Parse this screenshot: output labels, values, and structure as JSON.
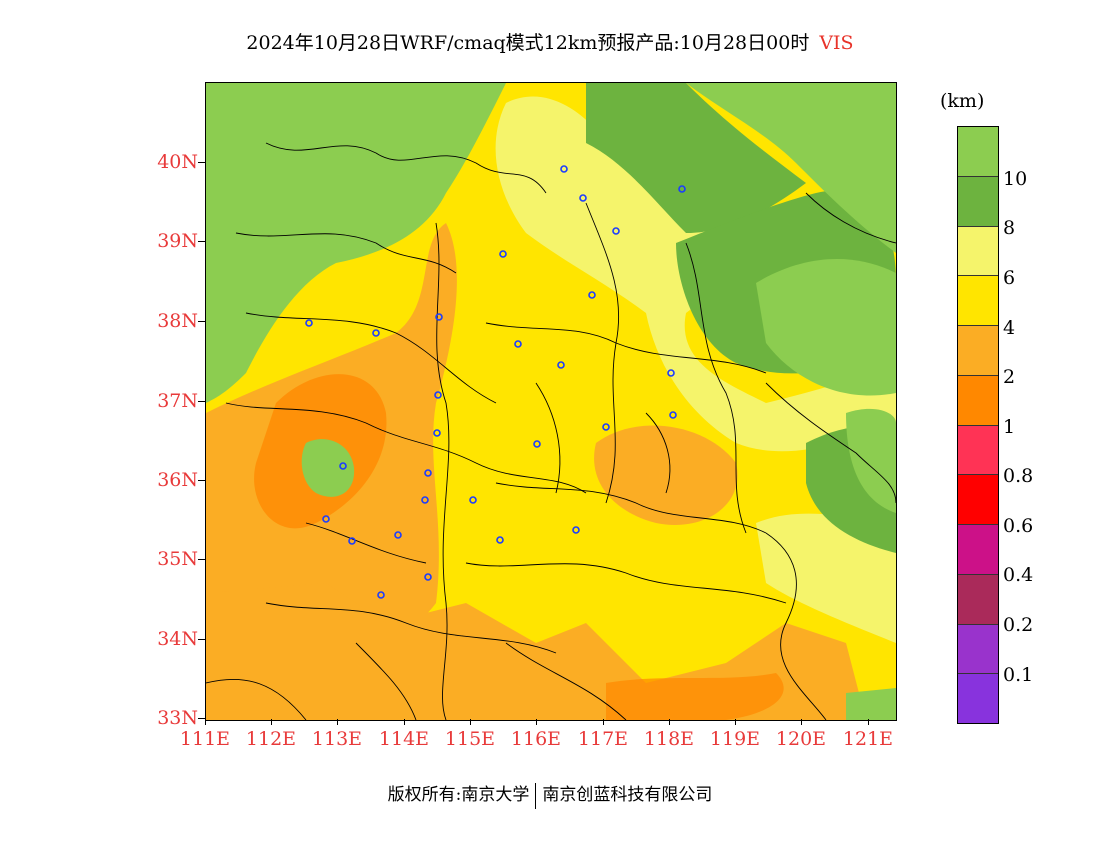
{
  "title": {
    "main": "2024年10月28日WRF/cmaq模式12km预报产品:10月28日00时",
    "variable": "VIS"
  },
  "map": {
    "lat_labels": [
      "40N",
      "39N",
      "38N",
      "37N",
      "36N",
      "35N",
      "34N",
      "33N"
    ],
    "lon_labels": [
      "111E",
      "112E",
      "113E",
      "114E",
      "115E",
      "116E",
      "117E",
      "118E",
      "119E",
      "120E",
      "121E"
    ],
    "stations_count_shown": 27
  },
  "legend": {
    "unit": "(km)",
    "labels": [
      "10",
      "8",
      "6",
      "4",
      "2",
      "1",
      "0.8",
      "0.6",
      "0.4",
      "0.2",
      "0.1"
    ],
    "colors": [
      "#8ccd50",
      "#6db33f",
      "#f5f46b",
      "#ffe500",
      "#fbad24",
      "#ff8800",
      "#ff3355",
      "#ff0000",
      "#cc1188",
      "#aa2a5a",
      "#9933cc",
      "#8833dd"
    ]
  },
  "footer": {
    "left": "版权所有:南京大学",
    "right": "南京创蓝科技有限公司"
  }
}
